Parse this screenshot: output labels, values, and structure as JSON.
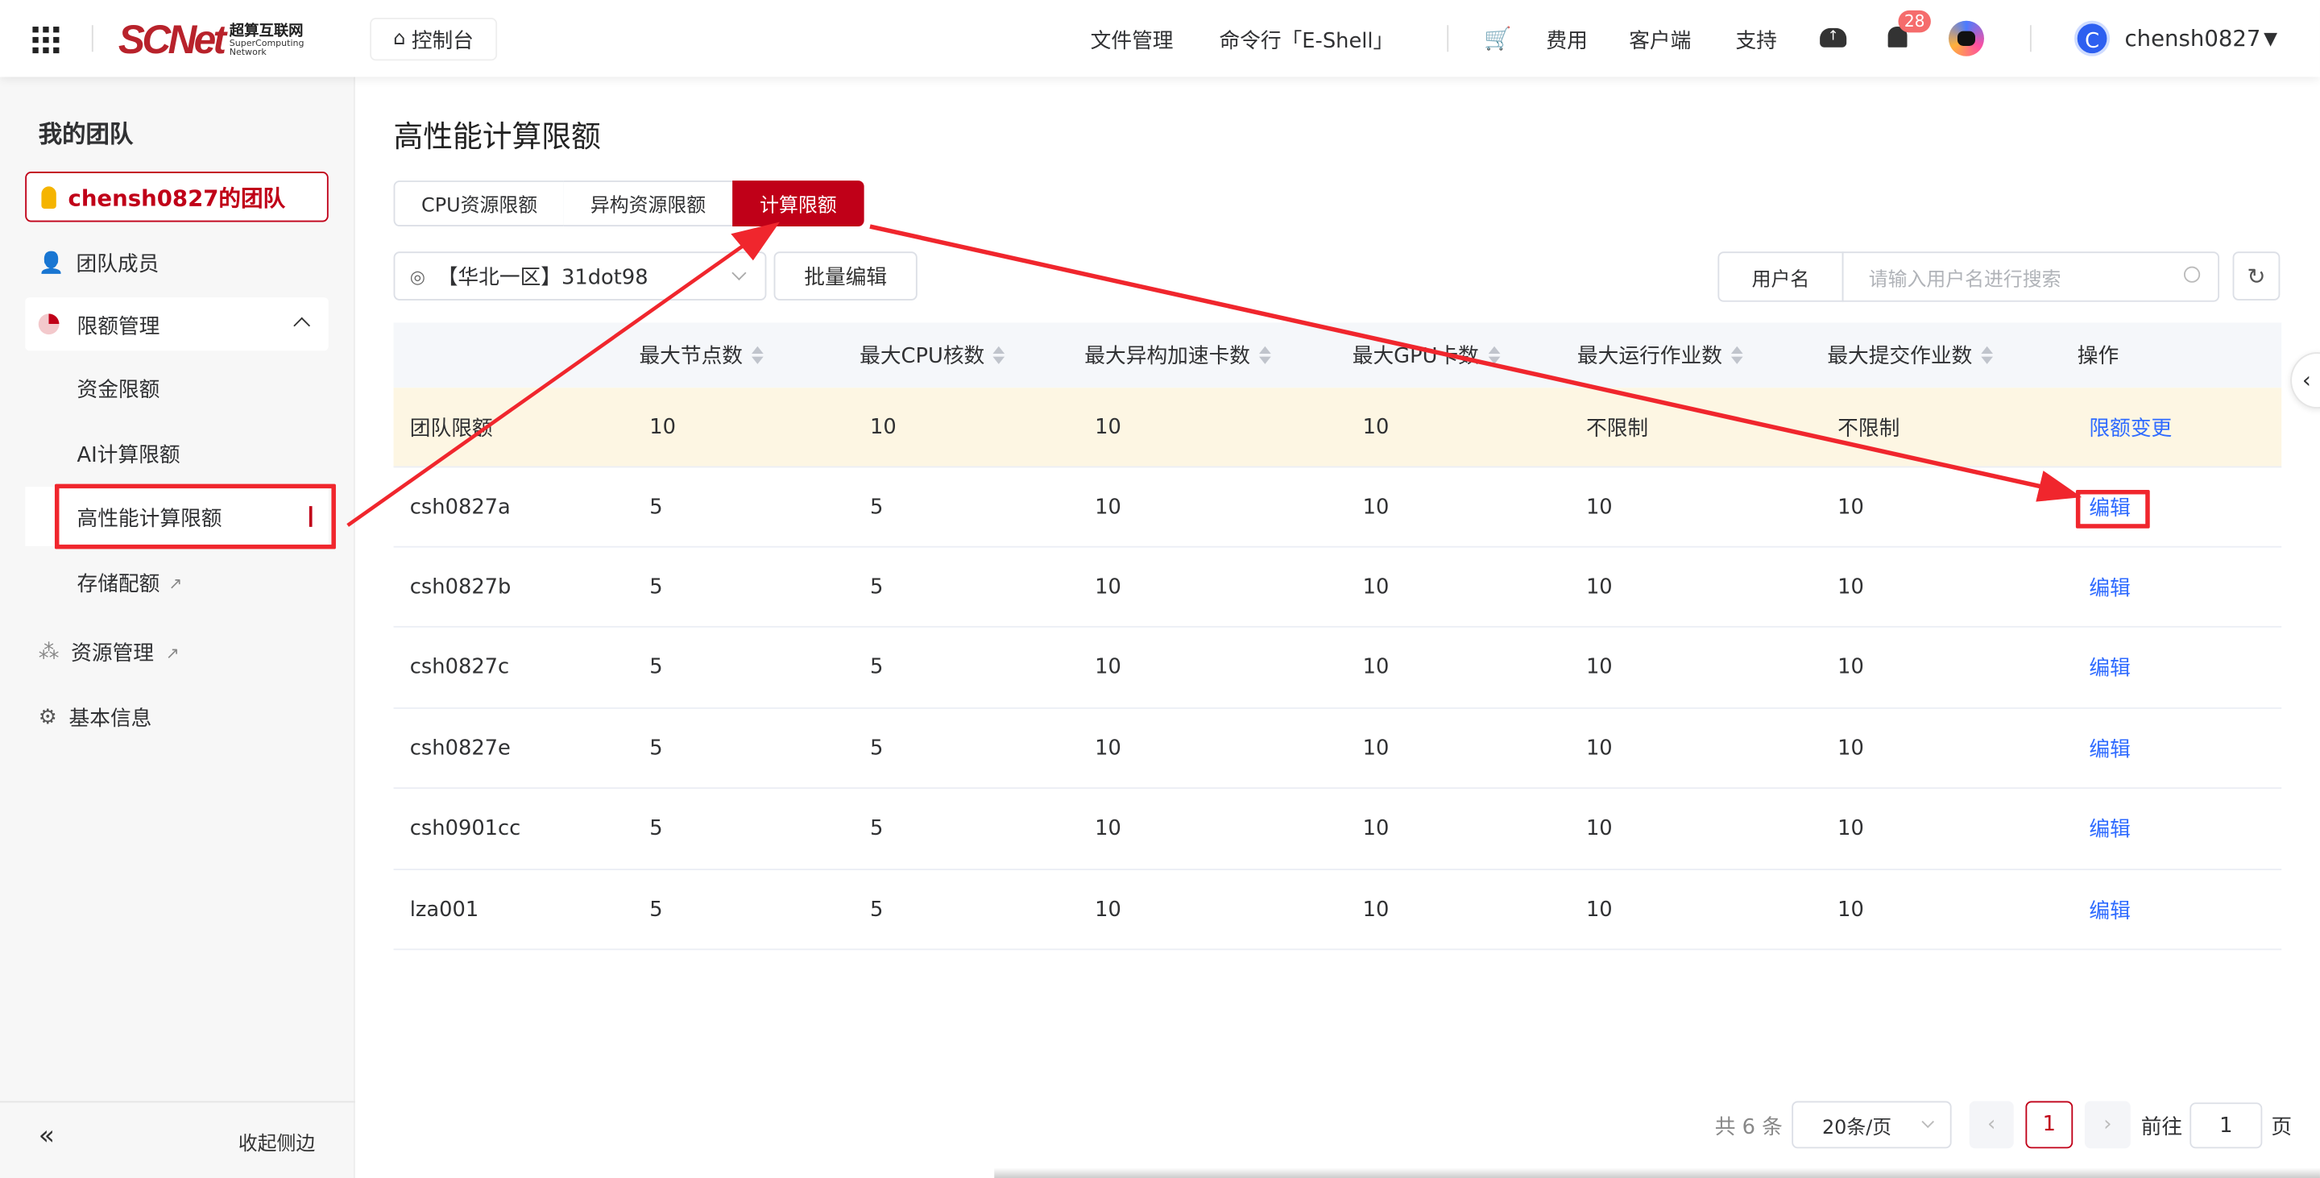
{
  "header": {
    "logo_text": "SCNet 超算互联网 SuperComputing Network",
    "console_label": "控制台",
    "nav": [
      "文件管理",
      "命令行「E-Shell」",
      "费用",
      "客户端",
      "支持"
    ],
    "notification_count": "28",
    "avatar_letter": "C",
    "username": "chensh0827"
  },
  "sidebar": {
    "title": "我的团队",
    "team": "chensh0827的团队",
    "items": [
      {
        "label": "团队成员"
      },
      {
        "label": "限额管理"
      },
      {
        "label": "资源管理"
      },
      {
        "label": "基本信息"
      }
    ],
    "sub_items": [
      {
        "label": "资金限额"
      },
      {
        "label": "AI计算限额"
      },
      {
        "label": "高性能计算限额"
      },
      {
        "label": "存储配额"
      }
    ],
    "collapse_label": "收起侧边"
  },
  "main": {
    "title": "高性能计算限额",
    "tabs": [
      {
        "label": "CPU资源限额"
      },
      {
        "label": "异构资源限额"
      },
      {
        "label": "计算限额",
        "active": true
      }
    ],
    "region_select": "【华北一区】31dot98",
    "batch_edit": "批量编辑",
    "search_label": "用户名",
    "search_placeholder": "请输入用户名进行搜索",
    "columns": [
      "",
      "最大节点数",
      "最大CPU核数",
      "最大异构加速卡数",
      "最大GPU卡数",
      "最大运行作业数",
      "最大提交作业数",
      "操作"
    ],
    "rows": [
      {
        "cells": [
          "团队限额",
          "10",
          "10",
          "10",
          "10",
          "不限制",
          "不限制"
        ],
        "action": "限额变更"
      },
      {
        "cells": [
          "csh0827a",
          "5",
          "5",
          "10",
          "10",
          "10",
          "10"
        ],
        "action": "编辑"
      },
      {
        "cells": [
          "csh0827b",
          "5",
          "5",
          "10",
          "10",
          "10",
          "10"
        ],
        "action": "编辑"
      },
      {
        "cells": [
          "csh0827c",
          "5",
          "5",
          "10",
          "10",
          "10",
          "10"
        ],
        "action": "编辑"
      },
      {
        "cells": [
          "csh0827e",
          "5",
          "5",
          "10",
          "10",
          "10",
          "10"
        ],
        "action": "编辑"
      },
      {
        "cells": [
          "csh0901cc",
          "5",
          "5",
          "10",
          "10",
          "10",
          "10"
        ],
        "action": "编辑"
      },
      {
        "cells": [
          "lza001",
          "5",
          "5",
          "10",
          "10",
          "10",
          "10"
        ],
        "action": "编辑"
      }
    ],
    "pagination": {
      "total": "共 6 条",
      "page_size": "20条/页",
      "current": "1",
      "goto_label": "前往",
      "goto_value": "1",
      "page_suffix": "页"
    }
  },
  "colors": {
    "brand": "#c00018",
    "link": "#2f6bff",
    "annotation": "#f0262d",
    "team_row_bg": "#fdf6e3"
  }
}
